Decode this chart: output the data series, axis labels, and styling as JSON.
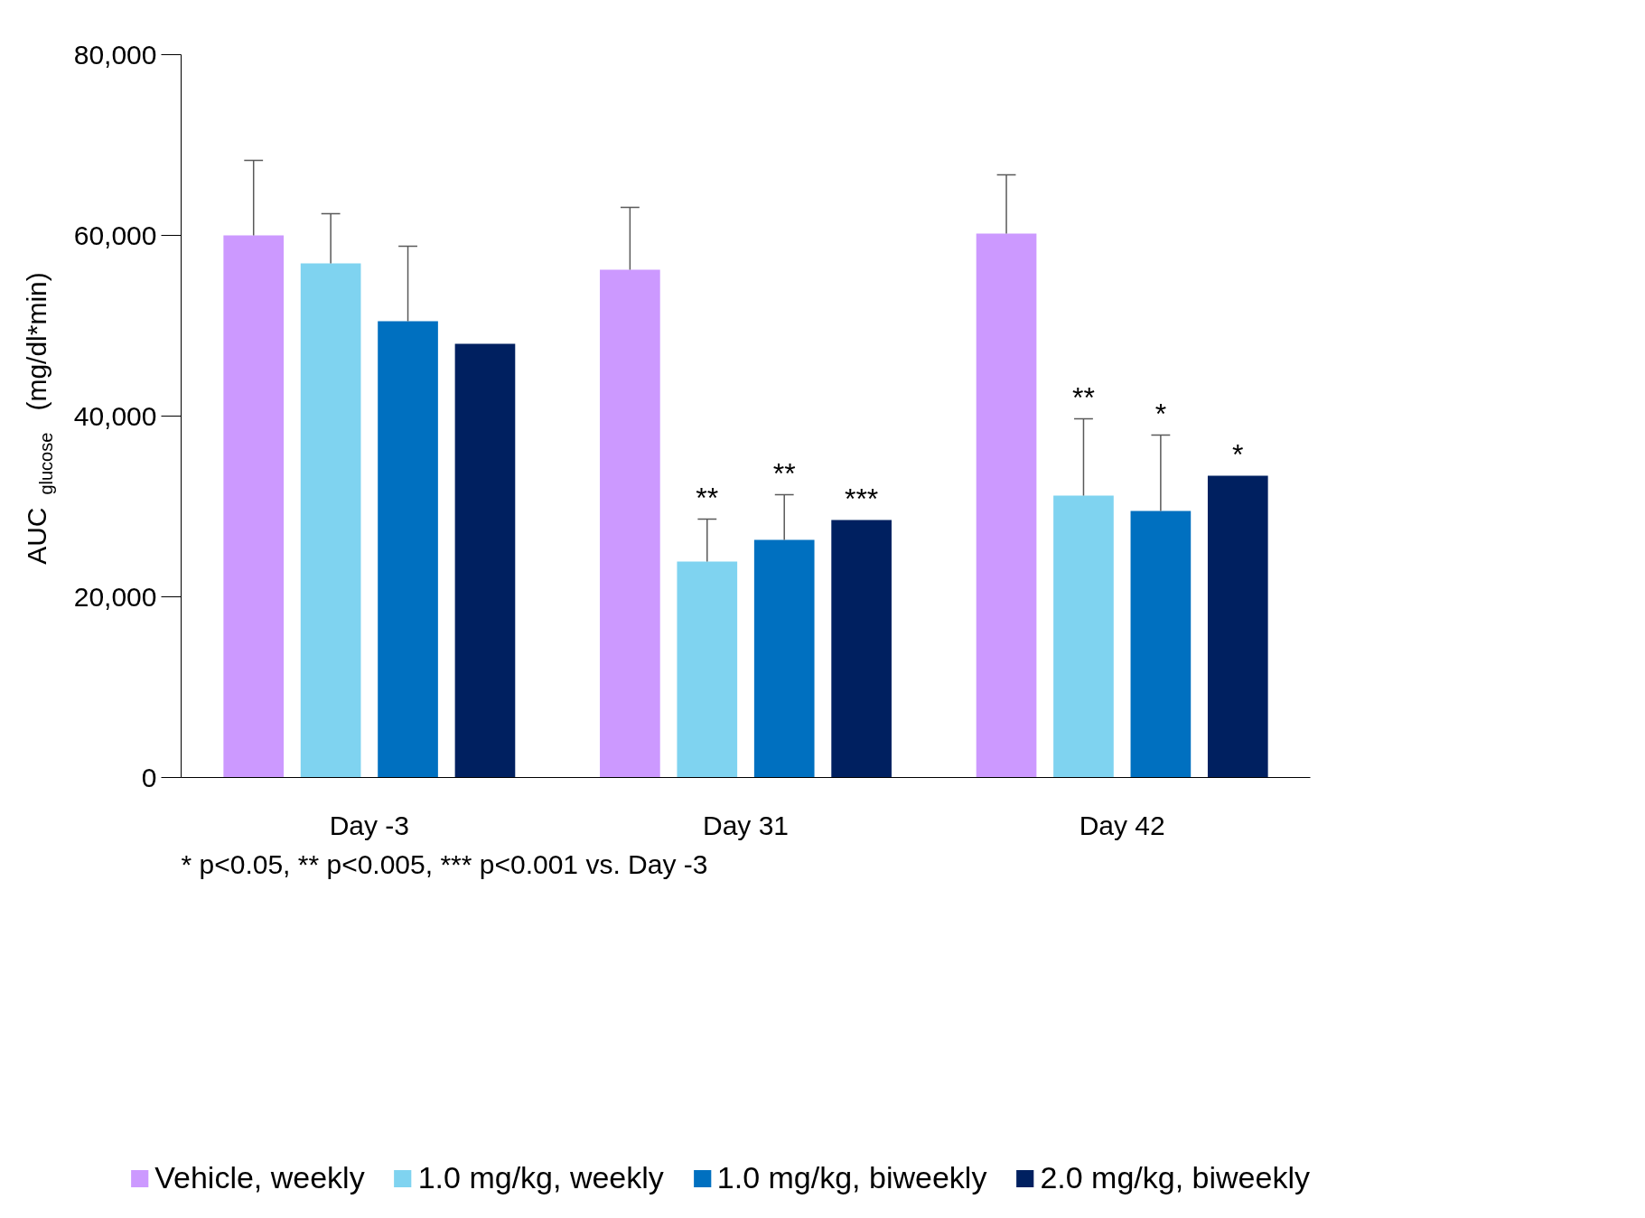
{
  "chart_data": {
    "type": "bar",
    "ylabel": "AUC $_{glucose}$ (mg/dl*min)",
    "categories": [
      "Day -3",
      "Day 31",
      "Day 42"
    ],
    "series": [
      {
        "name": "Vehicle, weekly",
        "color": "#cc99ff",
        "values": [
          60000,
          56200,
          60200
        ],
        "errors": [
          [
            60000,
            68300
          ],
          [
            56200,
            63100
          ],
          [
            60200,
            66700
          ]
        ]
      },
      {
        "name": "1.0 mg/kg, weekly",
        "color": "#7fd3f0",
        "values": [
          56900,
          23900,
          31200
        ],
        "errors": [
          [
            56900,
            62400
          ],
          [
            23900,
            28600
          ],
          [
            31200,
            39700
          ]
        ],
        "value_labels": [
          null,
          "**",
          "**"
        ]
      },
      {
        "name": "1.0 mg/kg, biweekly",
        "color": "#0070c0",
        "values": [
          50500,
          26300,
          29500
        ],
        "errors": [
          [
            50500,
            58800
          ],
          [
            26300,
            31300
          ],
          [
            29500,
            37900
          ]
        ],
        "value_labels": [
          null,
          "**",
          "*"
        ]
      },
      {
        "name": "2.0 mg/kg, biweekly",
        "color": "#002060",
        "values": [
          48000,
          28500,
          33400
        ],
        "errors": [
          null,
          null,
          null
        ],
        "value_labels": [
          null,
          "***",
          "*"
        ]
      }
    ],
    "ylim": [
      0,
      80000
    ],
    "yticks": [
      {
        "value": 0,
        "label": "0"
      },
      {
        "value": 20000,
        "label": "20,000"
      },
      {
        "value": 40000,
        "label": "40,000"
      },
      {
        "value": 60000,
        "label": "60,000"
      },
      {
        "value": 80000,
        "label": "80,000"
      }
    ],
    "grid": false,
    "legend": "bottom",
    "annotations": [
      "* p<0.05,  ** p<0.005,  *** p<0.001 vs. Day -3"
    ]
  }
}
